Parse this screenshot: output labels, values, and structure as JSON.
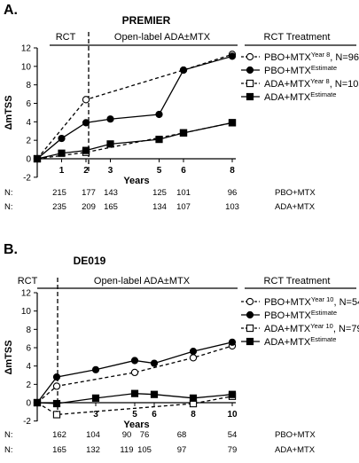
{
  "panels": [
    {
      "letter": "A.",
      "title": "PREMIER",
      "phases": {
        "rct": "RCT",
        "open": "Open-label ADA±MTX",
        "legend_header": "RCT Treatment"
      },
      "legend": [
        {
          "base": "PBO+MTX",
          "sup": "Year 8",
          "suffix": ", N=96",
          "marker": "open-circle",
          "dash": true
        },
        {
          "base": "PBO+MTX",
          "sup": "Estimate",
          "suffix": "",
          "marker": "filled-circle",
          "dash": false
        },
        {
          "base": "ADA+MTX",
          "sup": "Year 8",
          "suffix": ", N=103",
          "marker": "open-square",
          "dash": true
        },
        {
          "base": "ADA+MTX",
          "sup": "Estimate",
          "suffix": "",
          "marker": "filled-square",
          "dash": false
        }
      ],
      "n_table": {
        "label": "N:",
        "rows": [
          {
            "group": "PBO+MTX",
            "values": [
              "215",
              "177",
              "143",
              "125",
              "101",
              "96"
            ]
          },
          {
            "group": "ADA+MTX",
            "values": [
              "235",
              "209",
              "165",
              "134",
              "107",
              "103"
            ]
          }
        ]
      }
    },
    {
      "letter": "B.",
      "title": "DE019",
      "phases": {
        "rct": "RCT",
        "open": "Open-label ADA±MTX",
        "legend_header": "RCT Treatment"
      },
      "legend": [
        {
          "base": "PBO+MTX",
          "sup": "Year 10",
          "suffix": ", N=54",
          "marker": "open-circle",
          "dash": true
        },
        {
          "base": "PBO+MTX",
          "sup": "Estimate",
          "suffix": "",
          "marker": "filled-circle",
          "dash": false
        },
        {
          "base": "ADA+MTX",
          "sup": "Year 10",
          "suffix": ", N=79",
          "marker": "open-square",
          "dash": true
        },
        {
          "base": "ADA+MTX",
          "sup": "Estimate",
          "suffix": "",
          "marker": "filled-square",
          "dash": false
        }
      ],
      "n_table": {
        "label": "N:",
        "rows": [
          {
            "group": "PBO+MTX",
            "values": [
              "162",
              "104",
              "90",
              "76",
              "68",
              "54"
            ]
          },
          {
            "group": "ADA+MTX",
            "values": [
              "165",
              "132",
              "119",
              "105",
              "97",
              "79"
            ]
          }
        ]
      }
    }
  ],
  "chart_data": [
    {
      "type": "line",
      "title": "PREMIER",
      "xlabel": "Years",
      "ylabel": "ΔmTSS",
      "xlim": [
        0,
        8
      ],
      "ylim": [
        -2,
        12
      ],
      "xticks": [
        1,
        2,
        3,
        5,
        6,
        8
      ],
      "yticks": [
        -2,
        0,
        2,
        4,
        6,
        8,
        10,
        12
      ],
      "rct_end_year": 2,
      "series": [
        {
          "name": "PBO+MTX Year 8, N=96",
          "marker": "open-circle",
          "dash": true,
          "x": [
            0,
            2,
            6,
            8
          ],
          "y": [
            0,
            6.4,
            9.6,
            11.3
          ]
        },
        {
          "name": "PBO+MTX Estimate",
          "marker": "filled-circle",
          "dash": false,
          "x": [
            0,
            1,
            2,
            3,
            5,
            6,
            8
          ],
          "y": [
            0,
            2.2,
            3.9,
            4.3,
            4.8,
            9.6,
            11.1
          ]
        },
        {
          "name": "ADA+MTX Year 8, N=103",
          "marker": "open-square",
          "dash": true,
          "x": [
            0,
            2,
            6,
            8
          ],
          "y": [
            0,
            0.7,
            2.8,
            3.9
          ]
        },
        {
          "name": "ADA+MTX Estimate",
          "marker": "filled-square",
          "dash": false,
          "x": [
            0,
            1,
            2,
            3,
            5,
            6,
            8
          ],
          "y": [
            0,
            0.6,
            0.9,
            1.6,
            2.1,
            2.8,
            3.9
          ]
        }
      ]
    },
    {
      "type": "line",
      "title": "DE019",
      "xlabel": "Years",
      "ylabel": "ΔmTSS",
      "xlim": [
        0,
        10
      ],
      "ylim": [
        -2,
        12
      ],
      "xticks": [
        1,
        3,
        5,
        6,
        8,
        10
      ],
      "yticks": [
        -2,
        0,
        2,
        4,
        6,
        8,
        10,
        12
      ],
      "rct_end_year": 1,
      "series": [
        {
          "name": "PBO+MTX Year 10, N=54",
          "marker": "open-circle",
          "dash": true,
          "x": [
            0,
            1,
            5,
            8,
            10
          ],
          "y": [
            0,
            1.8,
            3.3,
            4.9,
            6.2
          ]
        },
        {
          "name": "PBO+MTX Estimate",
          "marker": "filled-circle",
          "dash": false,
          "x": [
            0,
            1,
            3,
            5,
            6,
            8,
            10
          ],
          "y": [
            0,
            2.8,
            3.6,
            4.6,
            4.3,
            5.6,
            6.6
          ]
        },
        {
          "name": "ADA+MTX Year 10, N=79",
          "marker": "open-square",
          "dash": true,
          "x": [
            0,
            1,
            8,
            10
          ],
          "y": [
            0,
            -1.3,
            -0.1,
            0.7
          ]
        },
        {
          "name": "ADA+MTX Estimate",
          "marker": "filled-square",
          "dash": false,
          "x": [
            0,
            1,
            3,
            5,
            6,
            8,
            10
          ],
          "y": [
            0,
            -0.1,
            0.5,
            1.0,
            0.9,
            0.5,
            0.9
          ]
        }
      ]
    }
  ]
}
